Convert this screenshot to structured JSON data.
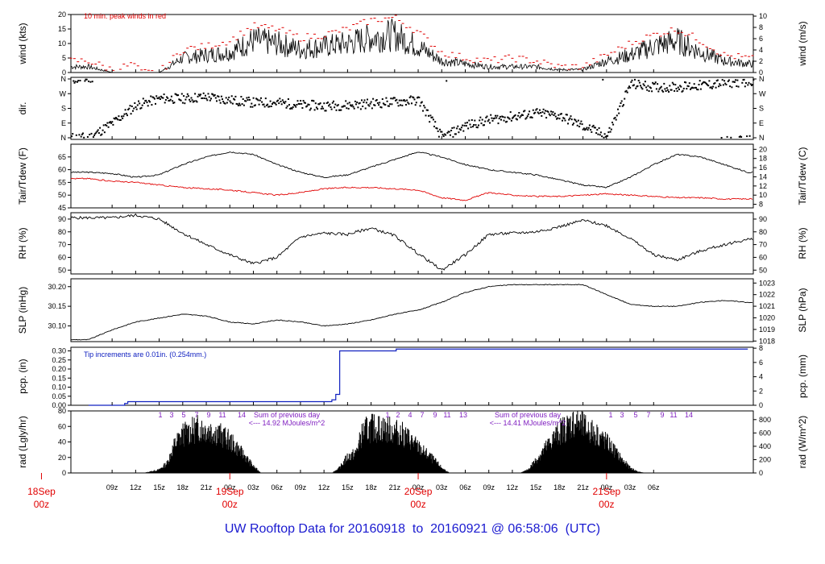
{
  "title": "UW Rooftop Data for 20160918  to  20160921 @ 06:58:06  (UTC)",
  "colors": {
    "series": "#000000",
    "peak": "#e00000",
    "dewpoint": "#e00000",
    "precip": "#1020c0",
    "annotation": "#8020c0",
    "day_label": "#e00000",
    "title": "#1a1ad0"
  },
  "x_axis": {
    "hour_ticks": [
      "09z",
      "12z",
      "15z",
      "18z",
      "21z",
      "00z",
      "03z",
      "06z",
      "09z",
      "12z",
      "15z",
      "18z",
      "21z",
      "00z",
      "03z",
      "06z",
      "09z",
      "12z",
      "15z",
      "18z",
      "21z",
      "00z",
      "03z",
      "06z"
    ],
    "day_labels": [
      {
        "day": "18Sep",
        "hour": "00z"
      },
      {
        "day": "19Sep",
        "hour": "00z"
      },
      {
        "day": "20Sep",
        "hour": "00z"
      },
      {
        "day": "21Sep",
        "hour": "00z"
      }
    ]
  },
  "chart_data": [
    {
      "id": "wind",
      "type": "line",
      "ylabel": "wind (kts)",
      "ylabel_right": "wind (m/s)",
      "ylim": [
        0,
        20
      ],
      "left_ticks": [
        "0",
        "5",
        "10",
        "15",
        "20"
      ],
      "right_ticks": [
        "0",
        "2",
        "4",
        "6",
        "8",
        "10"
      ],
      "annotation": "10 min. peak winds in red",
      "x_hours": [
        6,
        9,
        12,
        12.5,
        15,
        18,
        21,
        24,
        27,
        30,
        33,
        36,
        39,
        42,
        45,
        48,
        51,
        54,
        57,
        60,
        63,
        66,
        69,
        72,
        75,
        78,
        81,
        84,
        87,
        90
      ],
      "series": [
        {
          "role": "mean",
          "values": [
            2,
            0,
            0,
            0,
            0,
            5,
            6,
            7,
            11,
            10,
            8,
            9,
            10,
            12,
            13,
            9,
            4,
            3,
            2,
            2,
            2,
            1,
            1,
            4,
            6,
            9,
            11,
            7,
            4,
            3
          ]
        },
        {
          "role": "peak",
          "values": [
            4,
            1,
            3,
            0,
            0,
            8,
            9,
            11,
            16,
            15,
            12,
            13,
            15,
            18,
            19,
            14,
            7,
            5,
            4,
            5,
            4,
            2,
            2,
            6,
            10,
            13,
            15,
            11,
            6,
            5
          ]
        }
      ]
    },
    {
      "id": "dir",
      "type": "scatter",
      "ylabel": "dir.",
      "left_ticks": [
        "N",
        "E",
        "S",
        "W",
        "N"
      ],
      "right_ticks": [
        "N",
        "E",
        "S",
        "W",
        "N"
      ],
      "x_hours": [
        6,
        9,
        12,
        15,
        18,
        21,
        24,
        27,
        30,
        33,
        36,
        39,
        42,
        45,
        48,
        51,
        54,
        57,
        60,
        63,
        66,
        69,
        72,
        75,
        78,
        81,
        84,
        87,
        90
      ],
      "values_deg": [
        0,
        90,
        200,
        240,
        240,
        250,
        230,
        215,
        215,
        200,
        195,
        200,
        210,
        220,
        230,
        0,
        75,
        110,
        130,
        150,
        135,
        70,
        10,
        330,
        310,
        310,
        320,
        335,
        345
      ]
    },
    {
      "id": "temp",
      "type": "line",
      "ylabel": "Tair/Tdew (F)",
      "ylabel_right": "Tair/Tdew (C)",
      "ylim": [
        45,
        70
      ],
      "left_ticks": [
        "45",
        "50",
        "55",
        "60",
        "65"
      ],
      "right_ticks": [
        "8",
        "10",
        "12",
        "14",
        "16",
        "18",
        "20"
      ],
      "x_hours": [
        6,
        9,
        12,
        15,
        18,
        21,
        24,
        27,
        30,
        33,
        36,
        39,
        42,
        45,
        48,
        51,
        54,
        57,
        60,
        63,
        66,
        69,
        72,
        75,
        78,
        81,
        84,
        87,
        90
      ],
      "series": [
        {
          "name": "Tair",
          "values": [
            59,
            58.5,
            57,
            58,
            62,
            65,
            67,
            66,
            62,
            59,
            57,
            58,
            61,
            64,
            67,
            65,
            62,
            60,
            59,
            58,
            56,
            54,
            53,
            57,
            62,
            66,
            65,
            62,
            59
          ]
        },
        {
          "name": "Tdew",
          "values": [
            56.5,
            55.5,
            55,
            54,
            53,
            52.5,
            52,
            51,
            50,
            51,
            52.5,
            53,
            53,
            52.5,
            52,
            49,
            48,
            51,
            50,
            49.5,
            49.5,
            50,
            50.5,
            50,
            49.5,
            49,
            49,
            48.5,
            48.5
          ]
        }
      ]
    },
    {
      "id": "rh",
      "type": "line",
      "ylabel": "RH (%)",
      "ylabel_right": "RH (%)",
      "ylim": [
        47,
        95
      ],
      "left_ticks": [
        "50",
        "60",
        "70",
        "80",
        "90"
      ],
      "right_ticks": [
        "50",
        "60",
        "70",
        "80",
        "90"
      ],
      "x_hours": [
        6,
        9,
        12,
        15,
        18,
        21,
        24,
        27,
        30,
        33,
        36,
        39,
        42,
        45,
        48,
        51,
        54,
        57,
        60,
        63,
        66,
        69,
        72,
        75,
        78,
        81,
        84,
        87,
        90
      ],
      "values": [
        91,
        91,
        93,
        90,
        79,
        70,
        62,
        55,
        60,
        76,
        79,
        78,
        83,
        77,
        63,
        50,
        62,
        78,
        79,
        80,
        84,
        89,
        85,
        75,
        62,
        58,
        65,
        70,
        74
      ]
    },
    {
      "id": "slp",
      "type": "line",
      "ylabel": "SLP (inHg)",
      "ylabel_right": "SLP (hPa)",
      "ylim": [
        30.06,
        30.22
      ],
      "left_ticks": [
        "30.10",
        "30.15",
        "30.20"
      ],
      "right_ticks": [
        "1018",
        "1019",
        "1020",
        "1021",
        "1022",
        "1023"
      ],
      "x_hours": [
        6,
        9,
        12,
        15,
        18,
        21,
        24,
        27,
        30,
        33,
        36,
        39,
        42,
        45,
        48,
        51,
        54,
        57,
        60,
        63,
        66,
        69,
        72,
        75,
        78,
        81,
        84,
        87,
        90
      ],
      "values": [
        30.065,
        30.09,
        30.11,
        30.12,
        30.13,
        30.125,
        30.11,
        30.105,
        30.115,
        30.11,
        30.1,
        30.105,
        30.115,
        30.13,
        30.14,
        30.16,
        30.185,
        30.2,
        30.205,
        30.205,
        30.205,
        30.205,
        30.18,
        30.155,
        30.15,
        30.15,
        30.16,
        30.165,
        30.16
      ]
    },
    {
      "id": "pcp",
      "type": "line",
      "ylabel": "pcp. (in)",
      "ylabel_right": "pcp. (mm)",
      "ylim": [
        0,
        0.32
      ],
      "left_ticks": [
        "0.00",
        "0.05",
        "0.10",
        "0.15",
        "0.20",
        "0.25",
        "0.30"
      ],
      "right_ticks": [
        "0",
        "2",
        "4",
        "6",
        "8"
      ],
      "annotation": "Tip increments are 0.01in. (0.254mm.)",
      "x_hours": [
        6,
        10.5,
        10.6,
        11,
        12,
        36.5,
        37,
        37.5,
        38,
        38.5,
        45,
        45.2,
        90
      ],
      "values": [
        0.0,
        0.0,
        0.01,
        0.02,
        0.02,
        0.02,
        0.03,
        0.06,
        0.3,
        0.3,
        0.3,
        0.31,
        0.31
      ]
    },
    {
      "id": "rad",
      "type": "area",
      "ylabel": "rad (Lgly/hr)",
      "ylabel_right": "rad (W/m^2)",
      "ylim": [
        0,
        80
      ],
      "left_ticks": [
        "0",
        "20",
        "40",
        "60",
        "80"
      ],
      "right_ticks": [
        "0",
        "200",
        "400",
        "600",
        "800"
      ],
      "hour_marks": [
        "1",
        "3",
        "5",
        "7",
        "9",
        "11",
        "14"
      ],
      "hour_marks_day2": [
        "1",
        "2",
        "4",
        "7",
        "9",
        "11",
        "13"
      ],
      "summaries": [
        {
          "line1": "Sum of previous day",
          "line2": "<--- 14.92 MJoules/m^2"
        },
        {
          "line1": "Sum of previous day",
          "line2": "<--- 14.41 MJoules/m^2"
        }
      ],
      "x_hours": [
        13,
        15,
        16,
        17,
        18,
        19,
        20,
        21,
        22,
        23,
        24,
        25,
        26,
        27,
        28,
        37,
        38,
        39,
        40,
        41,
        42,
        43,
        44,
        45,
        46,
        47,
        48,
        49,
        50,
        51,
        52,
        53,
        61,
        62,
        63,
        64,
        65,
        66,
        67,
        68,
        69,
        70,
        71,
        72,
        73,
        74,
        75,
        76,
        77
      ],
      "values": [
        0,
        5,
        15,
        45,
        60,
        65,
        70,
        68,
        65,
        58,
        50,
        38,
        25,
        10,
        0,
        0,
        8,
        25,
        30,
        65,
        70,
        70,
        68,
        65,
        60,
        52,
        40,
        30,
        20,
        8,
        0,
        0,
        0,
        5,
        20,
        35,
        50,
        65,
        72,
        80,
        72,
        65,
        58,
        48,
        35,
        20,
        8,
        2,
        0
      ]
    }
  ]
}
